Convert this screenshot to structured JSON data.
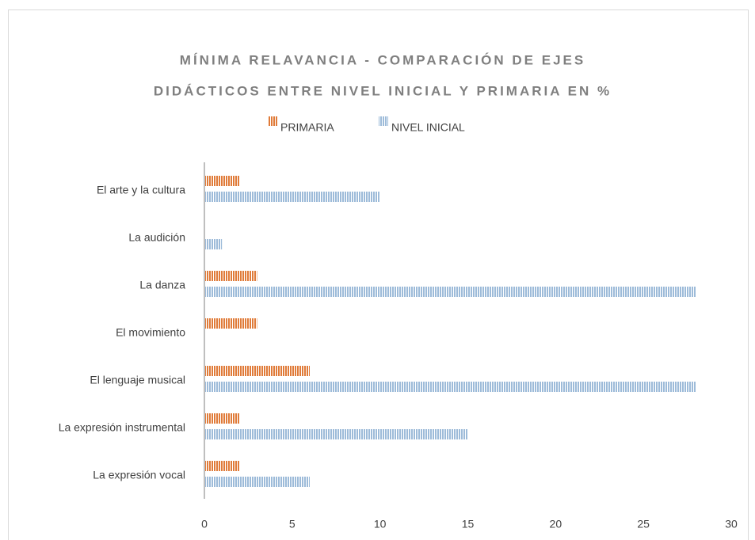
{
  "chart_data": {
    "type": "bar",
    "orientation": "horizontal",
    "title": [
      "MÍNIMA RELAVANCIA - COMPARACIÓN DE EJES",
      "DIDÁCTICOS ENTRE NIVEL INICIAL Y PRIMARIA EN %"
    ],
    "categories": [
      "El arte y la cultura",
      "La audición",
      "La danza",
      "El movimiento",
      "El lenguaje musical",
      "La expresión instrumental",
      "La expresión vocal"
    ],
    "series": [
      {
        "name": "PRIMARIA",
        "color": "#e07b39",
        "values": [
          2,
          0,
          3,
          3,
          6,
          2,
          2
        ]
      },
      {
        "name": "NIVEL INICIAL",
        "color": "#9dbbd9",
        "values": [
          10,
          1,
          28,
          0,
          28,
          15,
          6
        ]
      }
    ],
    "xlim": [
      0,
      30
    ],
    "xticks": [
      0,
      5,
      10,
      15,
      20,
      25,
      30
    ],
    "grid": false,
    "legend": "top"
  }
}
